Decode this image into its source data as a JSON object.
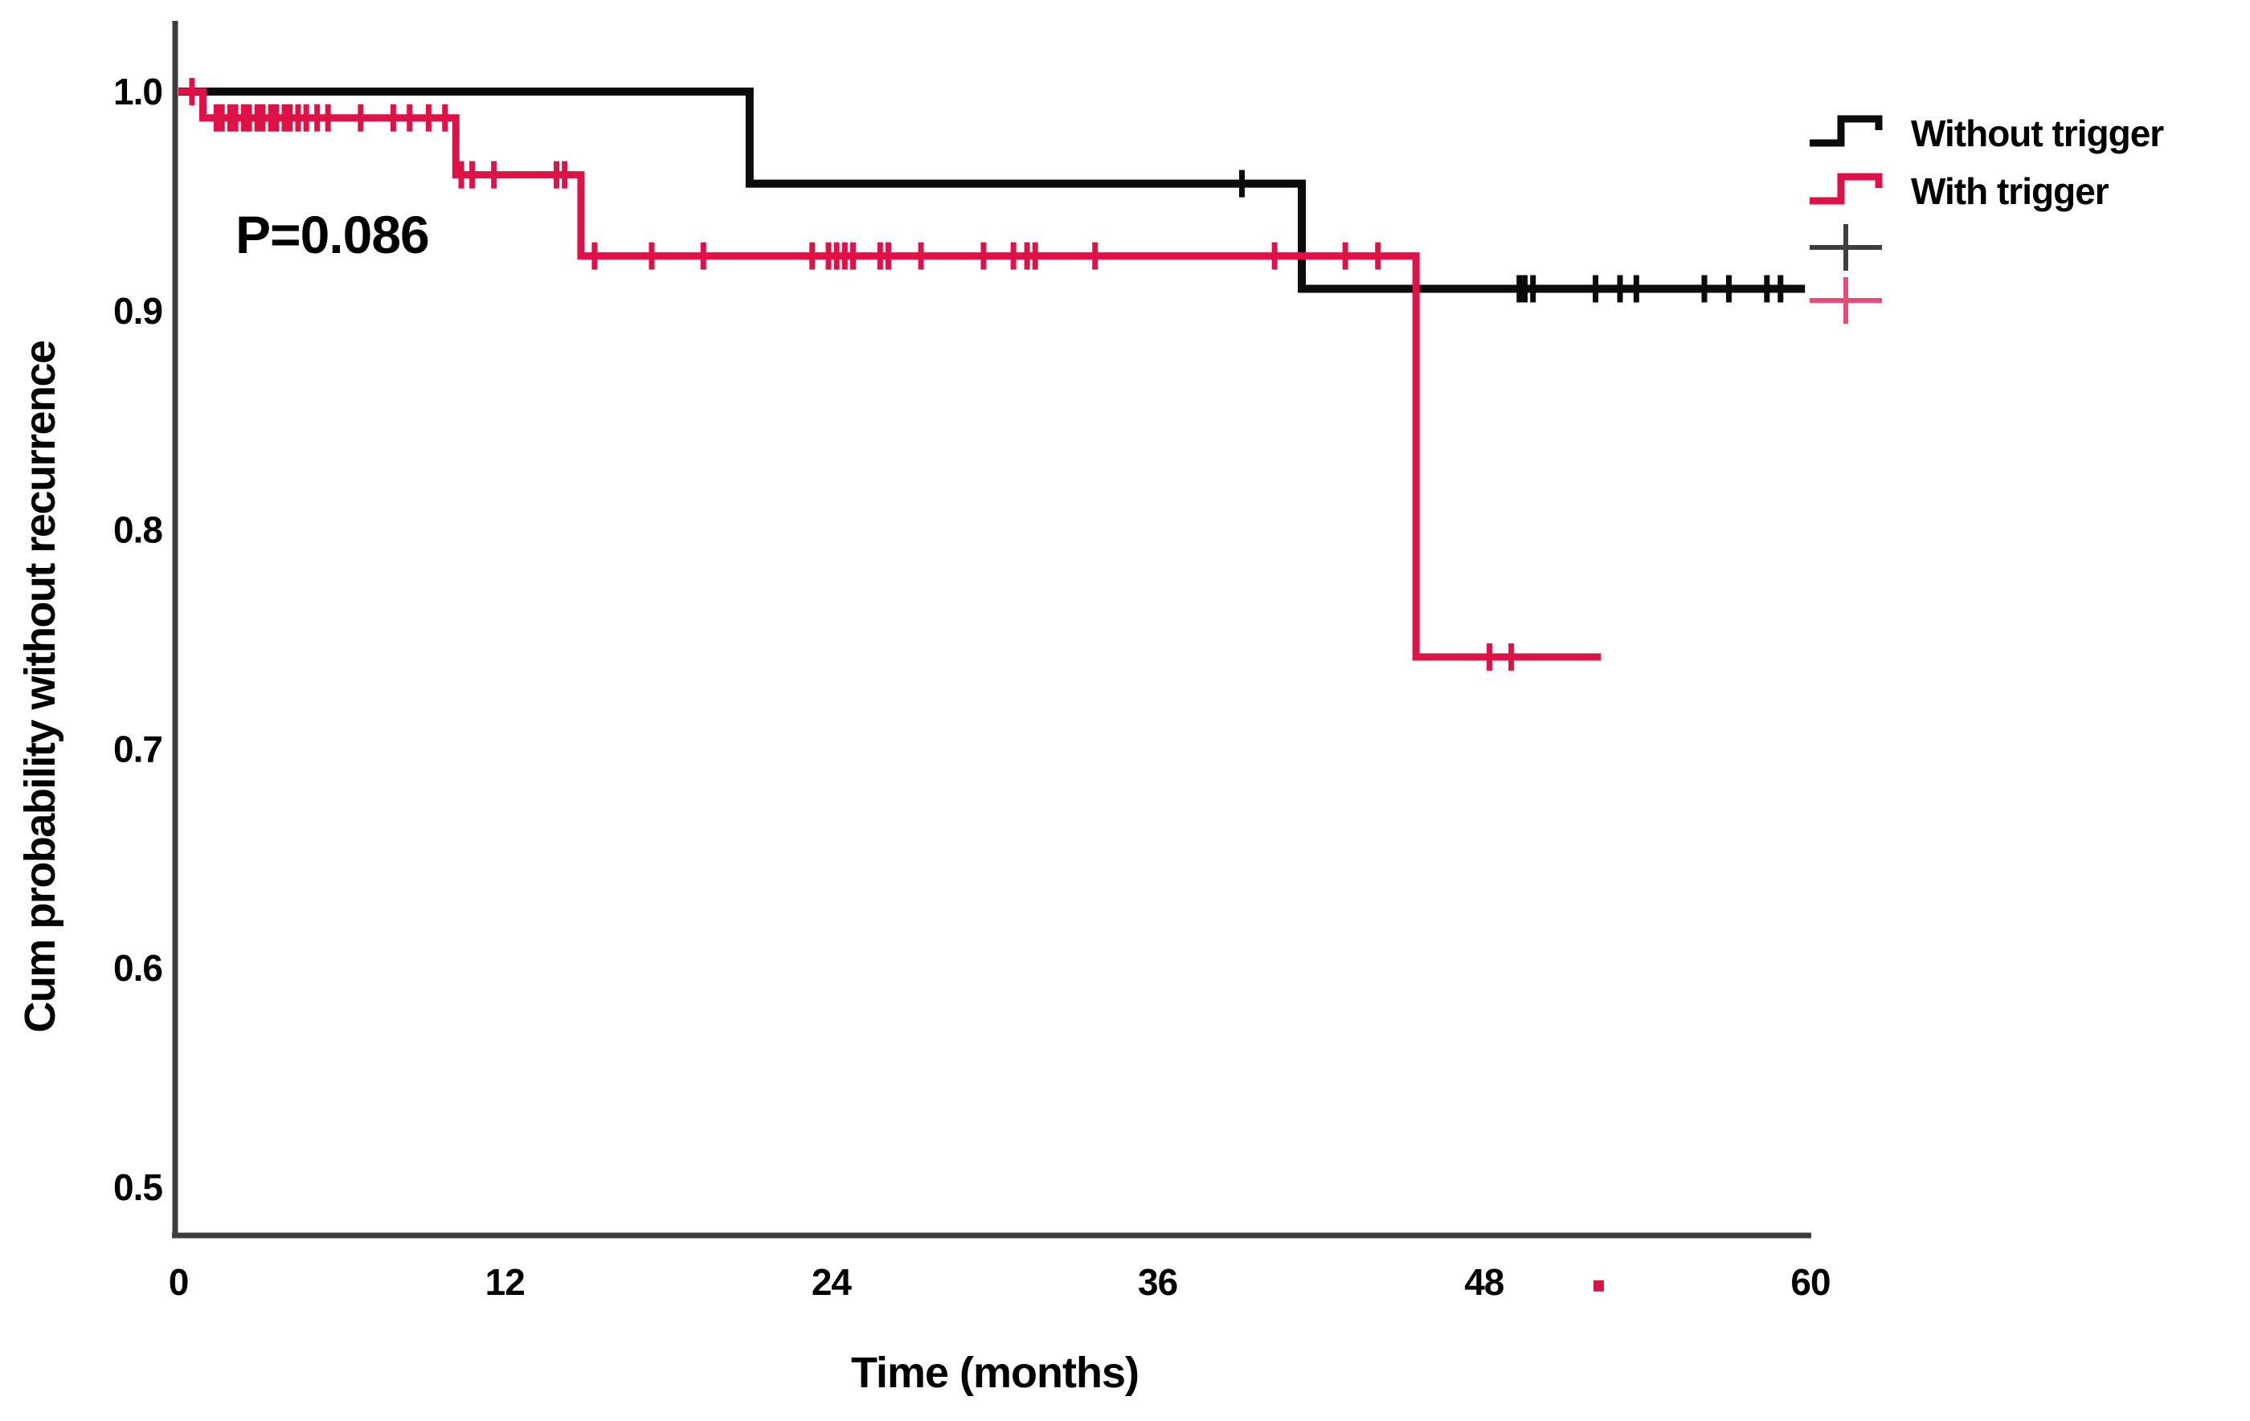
{
  "figure": {
    "p_value_label": "P=0.086"
  },
  "chart_data": {
    "type": "line",
    "subtype": "kaplan-meier-step",
    "title": "",
    "xlabel": "Time (months)",
    "ylabel": "Cum probability without recurrence",
    "xlim": [
      0,
      60
    ],
    "ylim": [
      0.48,
      1.02
    ],
    "x_ticks": [
      0,
      12,
      24,
      36,
      48,
      60
    ],
    "y_ticks": [
      "1.0",
      "0.9",
      "0.8",
      "0.7",
      "0.6",
      "0.5"
    ],
    "grid": false,
    "annotation": {
      "text": "P=0.086",
      "x_month": 2.1,
      "y_prob": 0.932
    },
    "colors": {
      "without_trigger": "#0b0b0b",
      "with_trigger": "#df1247",
      "censor_black_legend": "#3f3f3f",
      "censor_red_legend": "#e64c74",
      "axis": "#3c3c3c"
    },
    "legend": {
      "position": "top-right",
      "entries": [
        {
          "label": "Without trigger",
          "glyph": "step",
          "color": "#0b0b0b"
        },
        {
          "label": "With trigger",
          "glyph": "step",
          "color": "#df1247"
        },
        {
          "label": "",
          "glyph": "censor-plus",
          "color": "#3f3f3f"
        },
        {
          "label": "",
          "glyph": "censor-plus",
          "color": "#e64c74"
        }
      ]
    },
    "series": [
      {
        "name": "Without trigger",
        "color": "#0b0b0b",
        "line_width": 10,
        "steps": [
          [
            0,
            1.0
          ],
          [
            21.0,
            0.958
          ],
          [
            41.3,
            0.91
          ]
        ],
        "end_month": 59.8,
        "censor_marks": [
          [
            39.1,
            0.958
          ],
          [
            49.3,
            0.91
          ],
          [
            49.5,
            0.91
          ],
          [
            49.8,
            0.91
          ],
          [
            52.1,
            0.91
          ],
          [
            53.0,
            0.91
          ],
          [
            53.6,
            0.91
          ],
          [
            56.1,
            0.91
          ],
          [
            57.0,
            0.91
          ],
          [
            58.4,
            0.91
          ],
          [
            58.9,
            0.91
          ]
        ]
      },
      {
        "name": "With trigger",
        "color": "#df1247",
        "line_width": 9,
        "steps": [
          [
            0,
            1.0
          ],
          [
            0.9,
            0.988
          ],
          [
            10.2,
            0.962
          ],
          [
            14.8,
            0.925
          ],
          [
            45.5,
            0.742
          ]
        ],
        "end_month": 52.3,
        "censor_marks": [
          [
            0.5,
            1.0
          ],
          [
            1.4,
            0.988
          ],
          [
            1.6,
            0.988
          ],
          [
            1.9,
            0.988
          ],
          [
            2.1,
            0.988
          ],
          [
            2.4,
            0.988
          ],
          [
            2.6,
            0.988
          ],
          [
            2.9,
            0.988
          ],
          [
            3.1,
            0.988
          ],
          [
            3.4,
            0.988
          ],
          [
            3.6,
            0.988
          ],
          [
            3.9,
            0.988
          ],
          [
            4.1,
            0.988
          ],
          [
            4.4,
            0.988
          ],
          [
            4.7,
            0.988
          ],
          [
            5.1,
            0.988
          ],
          [
            5.5,
            0.988
          ],
          [
            6.7,
            0.988
          ],
          [
            7.9,
            0.988
          ],
          [
            8.5,
            0.988
          ],
          [
            9.2,
            0.988
          ],
          [
            9.8,
            0.988
          ],
          [
            10.4,
            0.962
          ],
          [
            10.8,
            0.962
          ],
          [
            11.6,
            0.962
          ],
          [
            13.9,
            0.962
          ],
          [
            14.2,
            0.962
          ],
          [
            15.3,
            0.925
          ],
          [
            17.4,
            0.925
          ],
          [
            19.3,
            0.925
          ],
          [
            23.3,
            0.925
          ],
          [
            23.9,
            0.925
          ],
          [
            24.2,
            0.925
          ],
          [
            24.5,
            0.925
          ],
          [
            24.8,
            0.925
          ],
          [
            25.8,
            0.925
          ],
          [
            26.1,
            0.925
          ],
          [
            27.3,
            0.925
          ],
          [
            29.6,
            0.925
          ],
          [
            30.7,
            0.925
          ],
          [
            31.2,
            0.925
          ],
          [
            31.5,
            0.925
          ],
          [
            33.7,
            0.925
          ],
          [
            40.3,
            0.925
          ],
          [
            42.9,
            0.925
          ],
          [
            44.1,
            0.925
          ],
          [
            48.2,
            0.742
          ],
          [
            49.0,
            0.742
          ]
        ]
      }
    ],
    "stray_mark": {
      "x_month": 52.2,
      "y_prob": 0.455,
      "color": "#df1247"
    }
  }
}
